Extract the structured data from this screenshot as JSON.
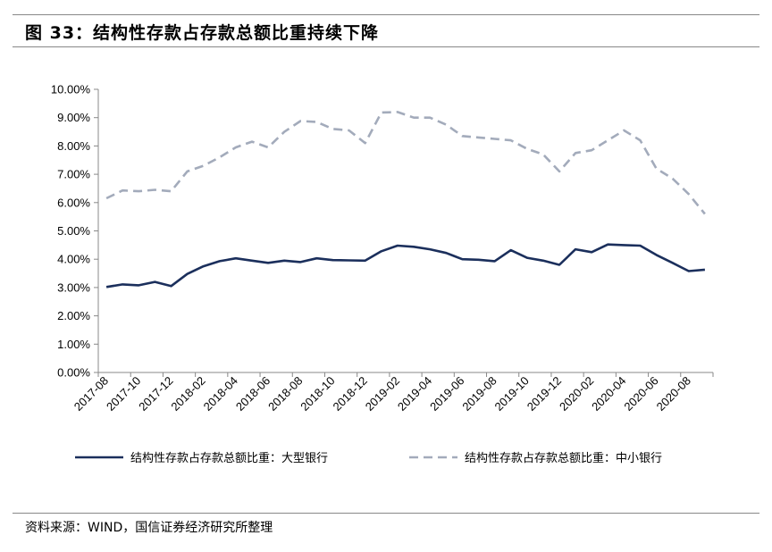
{
  "header": {
    "title": "图 33：结构性存款占存款总额比重持续下降"
  },
  "footer": {
    "source": "资料来源：WIND，国信证券经济研究所整理"
  },
  "chart_data": {
    "type": "line",
    "title": "",
    "xlabel": "",
    "ylabel": "",
    "ylim": [
      0,
      10
    ],
    "y_ticks": [
      0,
      1,
      2,
      3,
      4,
      5,
      6,
      7,
      8,
      9,
      10
    ],
    "y_tick_labels": [
      "0.00%",
      "1.00%",
      "2.00%",
      "3.00%",
      "4.00%",
      "5.00%",
      "6.00%",
      "7.00%",
      "8.00%",
      "9.00%",
      "10.00%"
    ],
    "x": [
      "2017-08",
      "2017-09",
      "2017-10",
      "2017-11",
      "2017-12",
      "2018-01",
      "2018-02",
      "2018-03",
      "2018-04",
      "2018-05",
      "2018-06",
      "2018-07",
      "2018-08",
      "2018-09",
      "2018-10",
      "2018-11",
      "2018-12",
      "2019-01",
      "2019-02",
      "2019-03",
      "2019-04",
      "2019-05",
      "2019-06",
      "2019-07",
      "2019-08",
      "2019-09",
      "2019-10",
      "2019-11",
      "2019-12",
      "2020-01",
      "2020-02",
      "2020-03",
      "2020-04",
      "2020-05",
      "2020-06",
      "2020-07",
      "2020-08",
      "2020-09"
    ],
    "x_tick_labels": [
      "2017-08",
      "2017-10",
      "2017-12",
      "2018-02",
      "2018-04",
      "2018-06",
      "2018-08",
      "2018-10",
      "2018-12",
      "2019-02",
      "2019-04",
      "2019-06",
      "2019-08",
      "2019-10",
      "2019-12",
      "2020-02",
      "2020-04",
      "2020-06",
      "2020-08"
    ],
    "legend_position": "bottom",
    "grid": false,
    "series": [
      {
        "name": "结构性存款占存款总额比重：大型银行",
        "color": "#1b2f5c",
        "style": "solid",
        "values": [
          3.02,
          3.11,
          3.08,
          3.2,
          3.05,
          3.48,
          3.75,
          3.93,
          4.03,
          3.95,
          3.87,
          3.95,
          3.9,
          4.03,
          3.97,
          3.96,
          3.95,
          4.28,
          4.48,
          4.44,
          4.35,
          4.22,
          4.0,
          3.98,
          3.93,
          4.32,
          4.05,
          3.95,
          3.8,
          4.35,
          4.25,
          4.52,
          4.5,
          4.48,
          4.15,
          3.87,
          3.58,
          3.63
        ]
      },
      {
        "name": "结构性存款占存款总额比重：中小银行",
        "color": "#a3abbb",
        "style": "dashed",
        "values": [
          6.15,
          6.43,
          6.4,
          6.45,
          6.4,
          7.1,
          7.3,
          7.6,
          7.95,
          8.15,
          7.95,
          8.5,
          8.88,
          8.85,
          8.6,
          8.55,
          8.1,
          9.18,
          9.2,
          9.0,
          9.0,
          8.75,
          8.35,
          8.3,
          8.25,
          8.2,
          7.9,
          7.7,
          7.1,
          7.75,
          7.85,
          8.2,
          8.55,
          8.2,
          7.2,
          6.85,
          6.3,
          5.6
        ]
      }
    ]
  }
}
